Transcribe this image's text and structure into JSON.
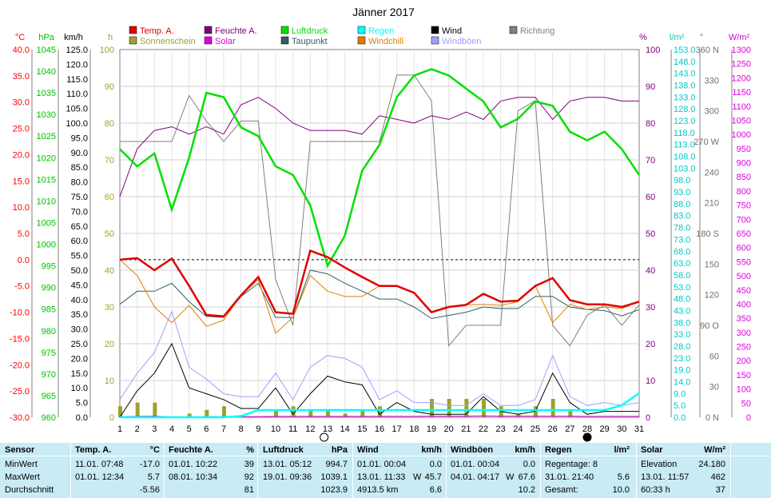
{
  "chart_data": {
    "type": "line",
    "title": "Jänner 2017",
    "x": [
      1,
      2,
      3,
      4,
      5,
      6,
      7,
      8,
      9,
      10,
      11,
      12,
      13,
      14,
      15,
      16,
      17,
      18,
      19,
      20,
      21,
      22,
      23,
      24,
      25,
      26,
      27,
      28,
      29,
      30,
      31
    ],
    "legend": [
      {
        "name": "Temp. A.",
        "color": "#e00000"
      },
      {
        "name": "Feuchte A.",
        "color": "#800080"
      },
      {
        "name": "Luftdruck",
        "color": "#00e000"
      },
      {
        "name": "Regen",
        "color": "#00ffff"
      },
      {
        "name": "Wind",
        "color": "#000000"
      },
      {
        "name": "Richtung",
        "color": "#808080"
      },
      {
        "name": "Sonnenschein",
        "color": "#a0a030"
      },
      {
        "name": "Solar",
        "color": "#e000e0"
      },
      {
        "name": "Taupunkt",
        "color": "#306060"
      },
      {
        "name": "Windchill",
        "color": "#e08000"
      },
      {
        "name": "Windböen",
        "color": "#a0a0ff"
      }
    ],
    "axes": {
      "temp": {
        "unit": "°C",
        "range": [
          -30,
          40
        ],
        "ticks": [
          "40.0",
          "35.0",
          "30.0",
          "25.0",
          "20.0",
          "15.0",
          "10.0",
          "5.0",
          "0.0",
          "-5.0",
          "-10.0",
          "-15.0",
          "-20.0",
          "-25.0",
          "-30.0"
        ]
      },
      "pressure": {
        "unit": "hPa",
        "range": [
          960,
          1045
        ],
        "ticks": [
          "1045",
          "1040",
          "1035",
          "1030",
          "1025",
          "1020",
          "1015",
          "1010",
          "1005",
          "1000",
          "995",
          "990",
          "985",
          "980",
          "975",
          "970",
          "965",
          "960"
        ]
      },
      "wind": {
        "unit": "km/h",
        "range": [
          0,
          125
        ],
        "ticks": [
          "125.0",
          "120.0",
          "115.0",
          "110.0",
          "105.0",
          "100.0",
          "95.0",
          "90.0",
          "85.0",
          "80.0",
          "75.0",
          "70.0",
          "65.0",
          "60.0",
          "55.0",
          "50.0",
          "45.0",
          "40.0",
          "35.0",
          "30.0",
          "25.0",
          "20.0",
          "15.0",
          "10.0",
          "5.0",
          "0.0"
        ]
      },
      "sun": {
        "unit": "h",
        "range": [
          0,
          100
        ],
        "ticks": [
          "100",
          "90",
          "80",
          "70",
          "60",
          "50",
          "40",
          "30",
          "20",
          "10",
          "0"
        ]
      },
      "humidity": {
        "unit": "%",
        "range": [
          0,
          100
        ],
        "ticks": [
          "100",
          "90",
          "80",
          "70",
          "60",
          "50",
          "40",
          "30",
          "20",
          "10",
          "0"
        ]
      },
      "rain": {
        "unit": "l/m²",
        "range": [
          0,
          153
        ],
        "ticks": [
          "153.0",
          "148.0",
          "143.0",
          "138.0",
          "133.0",
          "128.0",
          "123.0",
          "118.0",
          "113.0",
          "108.0",
          "103.0",
          "98.0",
          "93.0",
          "88.0",
          "83.0",
          "78.0",
          "73.0",
          "68.0",
          "63.0",
          "58.0",
          "53.0",
          "48.0",
          "43.0",
          "38.0",
          "33.0",
          "28.0",
          "23.0",
          "19.0",
          "14.0",
          "9.0",
          "5.0",
          "0.0"
        ]
      },
      "direction": {
        "unit": "°",
        "range": [
          0,
          360
        ],
        "ticks": [
          "360 N",
          "330",
          "300",
          "270 W",
          "240",
          "210",
          "180 S",
          "150",
          "120",
          "90 O",
          "60",
          "30",
          "0 N"
        ]
      },
      "solar": {
        "unit": "W/m²",
        "range": [
          0,
          1300
        ],
        "ticks": [
          "1300",
          "1250",
          "1200",
          "1150",
          "1100",
          "1050",
          "1000",
          "950",
          "900",
          "850",
          "800",
          "750",
          "700",
          "650",
          "600",
          "550",
          "500",
          "450",
          "400",
          "350",
          "300",
          "250",
          "200",
          "150",
          "100",
          "50",
          "0"
        ]
      }
    },
    "series": [
      {
        "name": "Temp. A.",
        "axis": "temp",
        "values": [
          0.0,
          0.3,
          -2.0,
          0.2,
          -5.0,
          -10.5,
          -10.8,
          -6.8,
          -3.3,
          -10.0,
          -10.3,
          1.7,
          0.5,
          -1.5,
          -3.3,
          -5.0,
          -5.0,
          -6.3,
          -10.0,
          -9.0,
          -8.6,
          -6.5,
          -8.0,
          -7.8,
          -5.0,
          -3.5,
          -7.7,
          -8.5,
          -8.5,
          -9.0,
          -8.0
        ]
      },
      {
        "name": "Feuchte A.",
        "axis": "humidity",
        "values": [
          60,
          73,
          78,
          79,
          77,
          79,
          77,
          85,
          87,
          84,
          80,
          78,
          78,
          78,
          77,
          82,
          81,
          80,
          82,
          81,
          83,
          81,
          86,
          87,
          87,
          81,
          86,
          87,
          87,
          86,
          86
        ]
      },
      {
        "name": "Luftdruck",
        "axis": "pressure",
        "values": [
          1022,
          1018,
          1021,
          1008,
          1020,
          1035,
          1034,
          1027,
          1025,
          1018,
          1016,
          1009,
          995,
          1002,
          1017,
          1023,
          1034,
          1039,
          1040.5,
          1039,
          1036,
          1033,
          1027,
          1029,
          1033,
          1032,
          1026,
          1024,
          1026,
          1022,
          1016
        ]
      },
      {
        "name": "Taupunkt",
        "axis": "temp",
        "values": [
          -8.5,
          -6.0,
          -6.0,
          -4.5,
          -8.0,
          -10.8,
          -11.0,
          -7.0,
          -4.5,
          -11.0,
          -11.0,
          -2.0,
          -2.7,
          -4.5,
          -6.0,
          -7.5,
          -7.5,
          -9.0,
          -11.2,
          -10.6,
          -10.0,
          -9.0,
          -9.3,
          -9.3,
          -7.0,
          -7.0,
          -9.0,
          -9.5,
          -9.7,
          -10.7,
          -9.5
        ]
      },
      {
        "name": "Windchill",
        "axis": "temp",
        "values": [
          0.0,
          -3.0,
          -9.0,
          -12.0,
          -8.7,
          -12.7,
          -11.5,
          -6.8,
          -3.8,
          -14.0,
          -11.0,
          -3.0,
          -6.0,
          -7.0,
          -7.0,
          -5.0,
          -5.0,
          -6.3,
          -10.0,
          -9.0,
          -8.6,
          -8.5,
          -8.7,
          -8.0,
          -5.0,
          -12.0,
          -8.5,
          -9.5,
          -9.0,
          -9.3,
          -8.0
        ]
      },
      {
        "name": "Wind",
        "axis": "wind",
        "values": [
          0,
          9,
          15,
          25,
          10,
          8,
          6,
          3,
          3,
          10,
          1,
          8,
          14,
          12,
          11,
          1,
          5,
          2,
          1,
          1,
          1,
          7,
          2,
          1,
          2,
          15,
          5,
          1,
          2,
          2,
          2
        ]
      },
      {
        "name": "Windböen",
        "axis": "wind",
        "values": [
          6,
          15,
          22,
          36,
          17,
          13,
          8,
          7,
          7,
          15,
          6,
          17,
          21,
          20,
          17,
          6,
          9,
          5,
          5,
          4,
          4,
          8,
          4,
          4,
          6,
          21,
          7,
          4,
          5,
          4,
          5
        ]
      },
      {
        "name": "Richtung",
        "axis": "direction",
        "values": [
          270,
          270,
          270,
          270,
          315,
          290,
          270,
          290,
          290,
          135,
          90,
          270,
          270,
          270,
          270,
          270,
          335,
          335,
          310,
          70,
          90,
          90,
          90,
          300,
          310,
          90,
          70,
          100,
          110,
          90,
          110
        ]
      },
      {
        "name": "Regen",
        "axis": "rain",
        "values": [
          0,
          0,
          0,
          0,
          0,
          0,
          0,
          0.5,
          3,
          3,
          3,
          3,
          3,
          3,
          3,
          3,
          3,
          3,
          3,
          3,
          3,
          3,
          3,
          3,
          3,
          3,
          3,
          3,
          3,
          5,
          10
        ]
      },
      {
        "name": "Sonnenschein",
        "axis": "sun",
        "values": [
          3,
          4,
          4,
          0,
          1,
          2,
          3,
          0,
          0,
          2,
          3,
          2,
          2,
          1,
          2,
          3,
          0,
          0,
          5,
          5,
          5,
          5,
          3,
          1,
          3,
          5,
          2,
          0,
          0,
          0,
          0
        ]
      },
      {
        "name": "Solar",
        "axis": "solar",
        "values": [
          2,
          3,
          4,
          1,
          1,
          2,
          2,
          2,
          2,
          3,
          3,
          3,
          3,
          3,
          3,
          3,
          3,
          3,
          4,
          4,
          4,
          5,
          4,
          4,
          4,
          4,
          4,
          3,
          3,
          3,
          3
        ]
      }
    ]
  },
  "stats": {
    "header": {
      "sensor": "Sensor",
      "temp": "Temp. A.",
      "temp_unit": "°C",
      "hum": "Feuchte A.",
      "hum_unit": "%",
      "press": "Luftdruck",
      "press_unit": "hPa",
      "wind": "Wind",
      "wind_unit": "km/h",
      "gust": "Windböen",
      "gust_unit": "km/h",
      "rain": "Regen",
      "rain_unit": "l/m²",
      "solar": "Solar",
      "solar_unit": "W/m²"
    },
    "rows": [
      {
        "label": "MinWert",
        "temp_when": "11.01.  07:48",
        "temp_val": "-17.0",
        "hum_when": "01.01.  10:22",
        "hum_val": "39",
        "press_when": "13.01.  05:12",
        "press_val": "994.7",
        "wind_when": "01.01.  00:04",
        "wind_dir": "",
        "wind_val": "0.0",
        "gust_when": "01.01.  00:04",
        "gust_dir": "",
        "gust_val": "0.0",
        "rain_when": "Regentage: 8",
        "rain_val": "",
        "solar_when": "Elevation",
        "solar_val": "24.180"
      },
      {
        "label": "MaxWert",
        "temp_when": "01.01.  12:34",
        "temp_val": "5.7",
        "hum_when": "08.01.  10:34",
        "hum_val": "92",
        "press_when": "19.01.  09:36",
        "press_val": "1039.1",
        "wind_when": "13.01.  11:33",
        "wind_dir": "W",
        "wind_val": "45.7",
        "gust_when": "04.01.  04:17",
        "gust_dir": "W",
        "gust_val": "67.6",
        "rain_when": "31.01.  21:40",
        "rain_val": "5.6",
        "solar_when": "13.01.  11:57",
        "solar_val": "462"
      },
      {
        "label": "Durchschnitt",
        "temp_when": "",
        "temp_val": "-5.56",
        "hum_when": "",
        "hum_val": "81",
        "press_when": "",
        "press_val": "1023.9",
        "wind_when": "4913.5 km",
        "wind_dir": "",
        "wind_val": "6.6",
        "gust_when": "",
        "gust_dir": "",
        "gust_val": "10.2",
        "rain_when": "Gesamt:",
        "rain_val": "10.0",
        "solar_when": "60:33 h",
        "solar_val": "37"
      }
    ]
  }
}
